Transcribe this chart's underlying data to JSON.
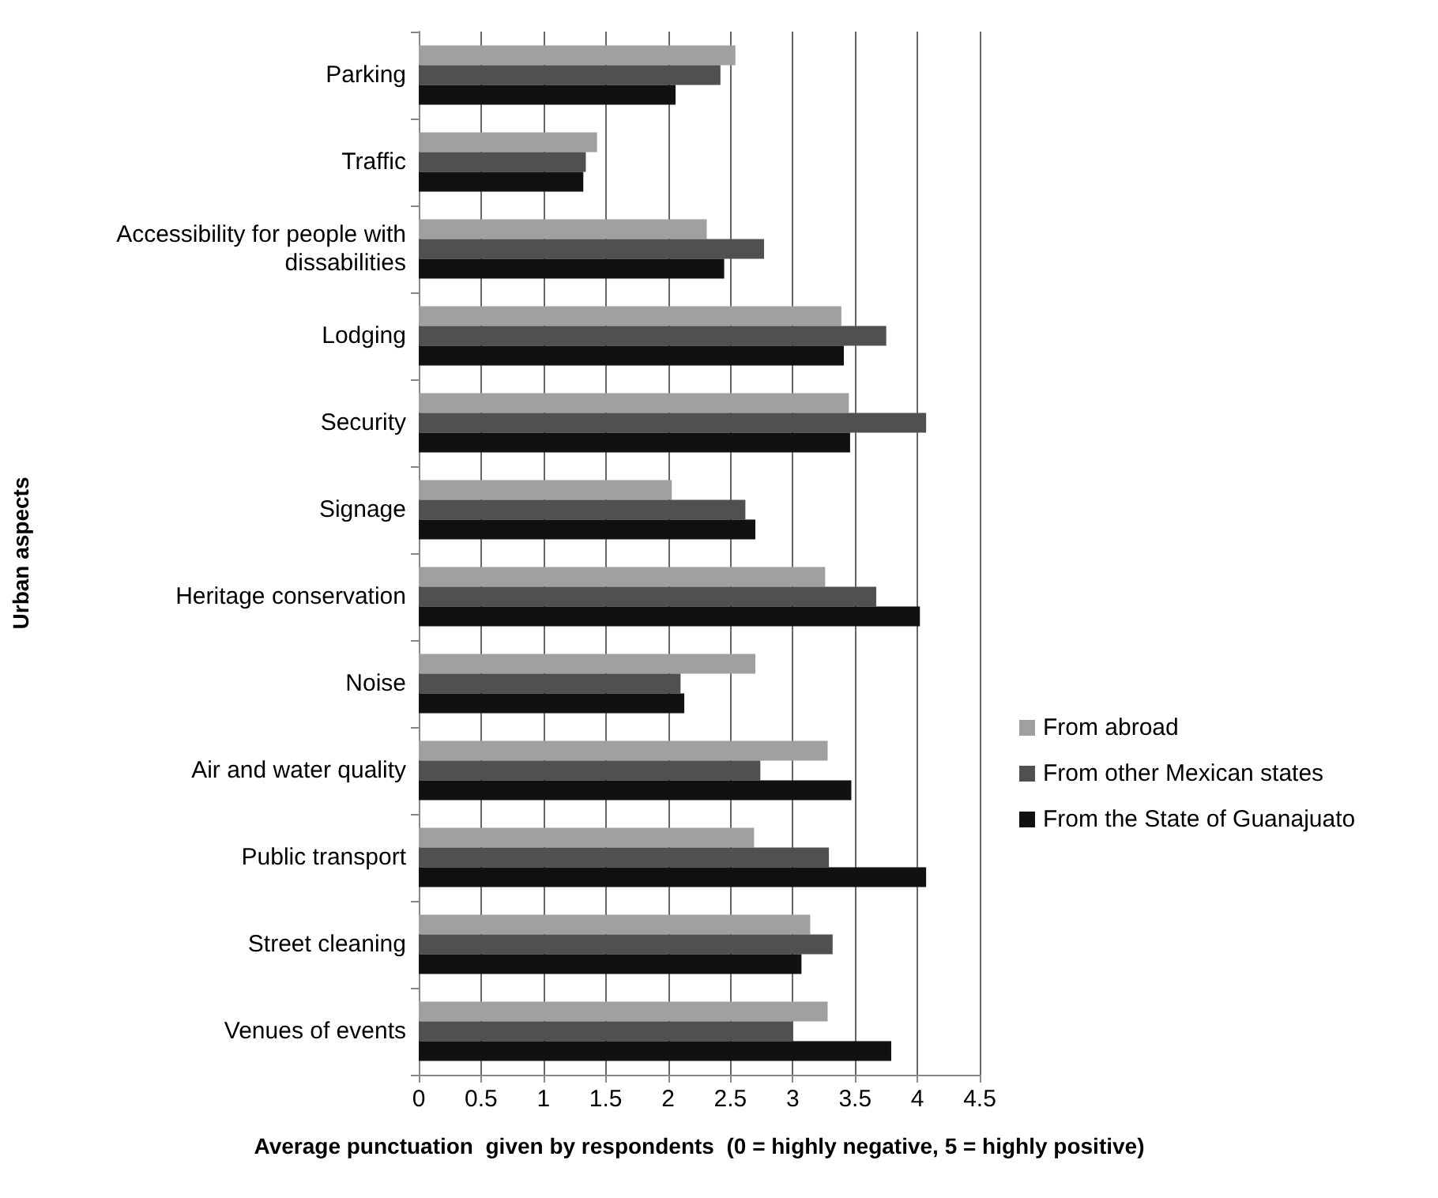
{
  "chart_data": {
    "type": "bar",
    "orientation": "horizontal",
    "xlabel": "Average punctuation  given by respondents  (0 = highly negative, 5 = highly positive)",
    "ylabel": "Urban aspects",
    "categories": [
      "Parking",
      "Traffic",
      "Accessibility for people with dissabilities",
      "Lodging",
      "Security",
      "Signage",
      "Heritage conservation",
      "Noise",
      "Air and water quality",
      "Public transport",
      "Street cleaning",
      "Venues of events"
    ],
    "series": [
      {
        "name": "From abroad",
        "color": "#a0a0a0",
        "values": [
          2.54,
          1.43,
          2.31,
          3.39,
          3.45,
          2.03,
          3.26,
          2.7,
          3.28,
          2.69,
          3.14,
          3.28
        ]
      },
      {
        "name": "From other Mexican states",
        "color": "#505050",
        "values": [
          2.42,
          1.34,
          2.77,
          3.75,
          4.07,
          2.62,
          3.67,
          2.1,
          2.74,
          3.29,
          3.32,
          3.0
        ]
      },
      {
        "name": "From the State of Guanajuato",
        "color": "#111111",
        "values": [
          2.06,
          1.32,
          2.45,
          3.41,
          3.46,
          2.7,
          4.02,
          2.13,
          3.47,
          4.07,
          3.07,
          3.79
        ]
      }
    ],
    "xlim": [
      0,
      4.5
    ],
    "xticks": [
      0,
      0.5,
      1,
      1.5,
      2,
      2.5,
      3,
      3.5,
      4,
      4.5
    ],
    "grid": "x",
    "legend": "right"
  }
}
